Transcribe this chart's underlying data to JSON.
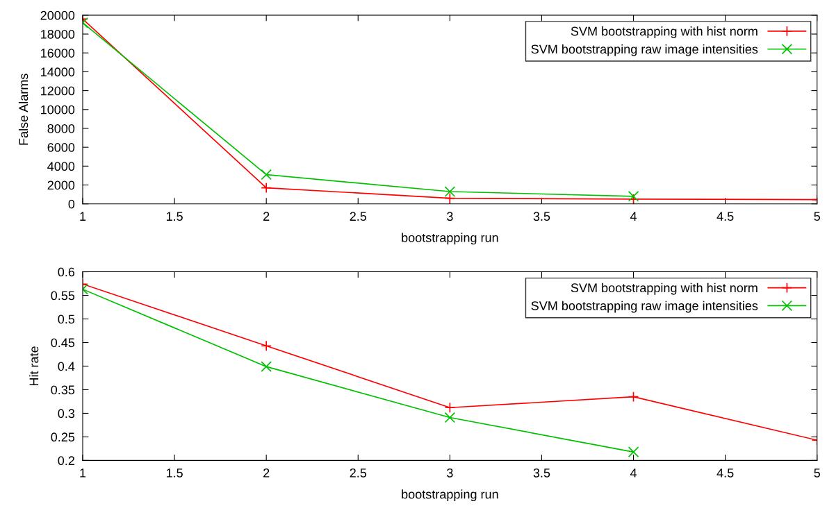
{
  "chart_data": [
    {
      "type": "line",
      "xlabel": "bootstrapping run",
      "ylabel": "False Alarms",
      "xlim": [
        1,
        5
      ],
      "xticks": [
        1,
        1.5,
        2,
        2.5,
        3,
        3.5,
        4,
        4.5,
        5
      ],
      "ylim": [
        0,
        20000
      ],
      "yticks": [
        0,
        2000,
        4000,
        6000,
        8000,
        10000,
        12000,
        14000,
        16000,
        18000,
        20000
      ],
      "grid": false,
      "legend": "top right",
      "series": [
        {
          "name": "SVM bootstrapping with hist norm",
          "color": "#ff0000",
          "marker": "plus",
          "x": [
            1,
            2,
            3,
            4,
            5
          ],
          "values": [
            19600,
            1700,
            600,
            500,
            450
          ]
        },
        {
          "name": "SVM bootstrapping raw image intensities",
          "color": "#00c000",
          "marker": "cross",
          "x": [
            1,
            2,
            3,
            4
          ],
          "values": [
            19200,
            3100,
            1300,
            800
          ]
        }
      ]
    },
    {
      "type": "line",
      "xlabel": "bootstrapping run",
      "ylabel": "Hit rate",
      "xlim": [
        1,
        5
      ],
      "xticks": [
        1,
        1.5,
        2,
        2.5,
        3,
        3.5,
        4,
        4.5,
        5
      ],
      "ylim": [
        0.2,
        0.6
      ],
      "yticks": [
        0.2,
        0.25,
        0.3,
        0.35,
        0.4,
        0.45,
        0.5,
        0.55,
        0.6
      ],
      "grid": false,
      "legend": "top right",
      "series": [
        {
          "name": "SVM bootstrapping with hist norm",
          "color": "#ff0000",
          "marker": "plus",
          "x": [
            1,
            2,
            3,
            4,
            5
          ],
          "values": [
            0.574,
            0.443,
            0.312,
            0.335,
            0.243
          ]
        },
        {
          "name": "SVM bootstrapping raw image intensities",
          "color": "#00c000",
          "marker": "cross",
          "x": [
            1,
            2,
            3,
            4
          ],
          "values": [
            0.563,
            0.399,
            0.291,
            0.218
          ]
        }
      ]
    }
  ]
}
